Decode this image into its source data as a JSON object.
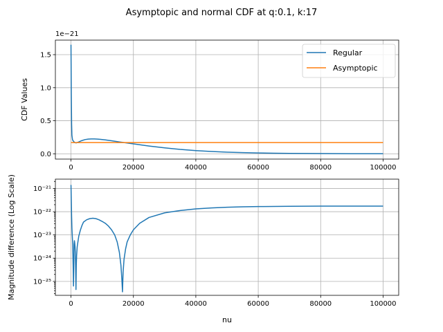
{
  "figure": {
    "suptitle": "Asymptopic and normal CDF at q:0.1, k:17"
  },
  "colors": {
    "regular": "#1f77b4",
    "asymptopic": "#ff7f0e",
    "grid": "#b0b0b0"
  },
  "chart_data": [
    {
      "type": "line",
      "title": "",
      "xlabel": "",
      "ylabel": "CDF Values",
      "y_offset_text": "1e−21",
      "grid": true,
      "legend_position": "top-right",
      "xlim": [
        -5000,
        105000
      ],
      "ylim": [
        -0.08,
        1.72
      ],
      "x_ticks": [
        0,
        20000,
        40000,
        60000,
        80000,
        100000
      ],
      "x_tick_labels": [
        "0",
        "20000",
        "40000",
        "60000",
        "80000",
        "100000"
      ],
      "y_ticks": [
        0.0,
        0.5,
        1.0,
        1.5
      ],
      "y_tick_labels": [
        "0.0",
        "0.5",
        "1.0",
        "1.5"
      ],
      "series": [
        {
          "name": "Regular",
          "color": "#1f77b4",
          "x": [
            0,
            100,
            200,
            300,
            500,
            800,
            1200,
            1700,
            2500,
            3500,
            4500,
            5500,
            6500,
            7500,
            8500,
            9500,
            11000,
            13000,
            15000,
            17000,
            20000,
            25000,
            30000,
            35000,
            40000,
            45000,
            50000,
            55000,
            60000,
            65000,
            70000,
            75000,
            80000,
            85000,
            90000,
            95000,
            100000
          ],
          "values": [
            1.65,
            0.9,
            0.45,
            0.28,
            0.21,
            0.19,
            0.17,
            0.165,
            0.18,
            0.2,
            0.215,
            0.222,
            0.225,
            0.225,
            0.222,
            0.218,
            0.21,
            0.197,
            0.183,
            0.17,
            0.15,
            0.118,
            0.09,
            0.066,
            0.048,
            0.035,
            0.025,
            0.018,
            0.013,
            0.009,
            0.006,
            0.0045,
            0.0032,
            0.0023,
            0.0016,
            0.0011,
            0.0008
          ]
        },
        {
          "name": "Asymptopic",
          "color": "#ff7f0e",
          "x": [
            0,
            100,
            500,
            1000,
            2000,
            5000,
            20000,
            40000,
            60000,
            80000,
            100000
          ],
          "values": [
            0.17,
            0.17,
            0.17,
            0.17,
            0.17,
            0.17,
            0.17,
            0.17,
            0.17,
            0.17,
            0.17
          ]
        }
      ]
    },
    {
      "type": "line",
      "title": "",
      "xlabel": "nu",
      "ylabel": "Magnitude difference (Log Scale)",
      "y_scale": "log",
      "grid": true,
      "xlim": [
        -5000,
        105000
      ],
      "ylim_log10": [
        -25.6,
        -20.6
      ],
      "x_ticks": [
        0,
        20000,
        40000,
        60000,
        80000,
        100000
      ],
      "x_tick_labels": [
        "0",
        "20000",
        "40000",
        "60000",
        "80000",
        "100000"
      ],
      "y_ticks_log10": [
        -25,
        -24,
        -23,
        -22,
        -21
      ],
      "y_tick_labels": [
        "10⁻²⁵",
        "10⁻²⁴",
        "10⁻²³",
        "10⁻²²",
        "10⁻²¹"
      ],
      "series": [
        {
          "name": "",
          "color": "#1f77b4",
          "x": [
            0,
            100,
            200,
            300,
            400,
            550,
            700,
            800,
            900,
            1000,
            1100,
            1200,
            1300,
            1400,
            1500,
            1600,
            1700,
            1800,
            2000,
            2500,
            3000,
            3500,
            4000,
            5000,
            6000,
            7000,
            8000,
            9000,
            10000,
            11000,
            12000,
            13000,
            14000,
            14800,
            15500,
            16000,
            16300,
            16500,
            16700,
            17000,
            17500,
            18000,
            19000,
            20000,
            22000,
            25000,
            30000,
            35000,
            40000,
            45000,
            50000,
            55000,
            60000,
            70000,
            80000,
            90000,
            100000
          ],
          "log10_values": [
            -20.85,
            -21.5,
            -22.2,
            -22.7,
            -23.0,
            -23.4,
            -24.4,
            -25.2,
            -24.4,
            -23.4,
            -23.25,
            -23.35,
            -23.5,
            -23.8,
            -24.4,
            -25.35,
            -24.3,
            -23.9,
            -23.5,
            -23.05,
            -22.8,
            -22.6,
            -22.45,
            -22.35,
            -22.3,
            -22.28,
            -22.3,
            -22.35,
            -22.42,
            -22.5,
            -22.62,
            -22.78,
            -23.0,
            -23.3,
            -23.75,
            -24.3,
            -24.9,
            -25.45,
            -24.6,
            -24.05,
            -23.6,
            -23.3,
            -23.0,
            -22.78,
            -22.5,
            -22.25,
            -22.05,
            -21.95,
            -21.88,
            -21.84,
            -21.81,
            -21.79,
            -21.78,
            -21.77,
            -21.76,
            -21.76,
            -21.76
          ]
        }
      ]
    }
  ]
}
